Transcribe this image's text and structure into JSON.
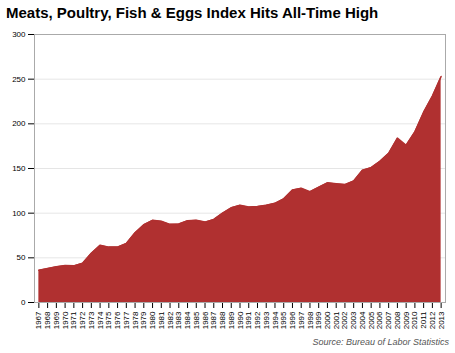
{
  "chart_data": {
    "type": "area",
    "title": "Meats, Poultry, Fish & Eggs Index Hits All-Time High",
    "annotation": "Source: Bureau of Labor Statistics",
    "x": [
      1967,
      1968,
      1969,
      1970,
      1971,
      1972,
      1973,
      1974,
      1975,
      1976,
      1977,
      1978,
      1979,
      1980,
      1981,
      1982,
      1983,
      1984,
      1985,
      1986,
      1987,
      1988,
      1989,
      1990,
      1991,
      1992,
      1993,
      1994,
      1995,
      1996,
      1997,
      1998,
      1999,
      2000,
      2001,
      2002,
      2003,
      2004,
      2005,
      2006,
      2007,
      2008,
      2009,
      2010,
      2011,
      2012,
      2013
    ],
    "values": [
      36.0,
      38.0,
      40.0,
      41.5,
      41.0,
      44.0,
      55.0,
      64.0,
      62.0,
      62.0,
      66.0,
      78.0,
      87.0,
      92.0,
      91.0,
      87.5,
      88.0,
      91.5,
      92.0,
      90.0,
      93.0,
      100.0,
      106.0,
      109.0,
      107.0,
      107.5,
      109.0,
      111.0,
      116.0,
      126.0,
      128.0,
      124.0,
      129.0,
      134.0,
      133.0,
      132.0,
      136.0,
      148.0,
      151.0,
      158.0,
      167.0,
      184.0,
      176.0,
      191.0,
      213.0,
      231.0,
      253.0
    ],
    "color": "#b03030",
    "xlim": [
      1966.5,
      2013.5
    ],
    "xticks": [
      1967,
      1968,
      1969,
      1970,
      1971,
      1972,
      1973,
      1974,
      1975,
      1976,
      1977,
      1978,
      1979,
      1980,
      1981,
      1982,
      1983,
      1984,
      1985,
      1986,
      1987,
      1988,
      1989,
      1990,
      1991,
      1992,
      1993,
      1994,
      1995,
      1996,
      1997,
      1998,
      1999,
      2000,
      2001,
      2002,
      2003,
      2004,
      2005,
      2006,
      2007,
      2008,
      2009,
      2010,
      2011,
      2012,
      2013
    ],
    "ylim": [
      0,
      300
    ],
    "yticks": [
      0,
      50,
      100,
      150,
      200,
      250,
      300
    ],
    "grid": true
  }
}
